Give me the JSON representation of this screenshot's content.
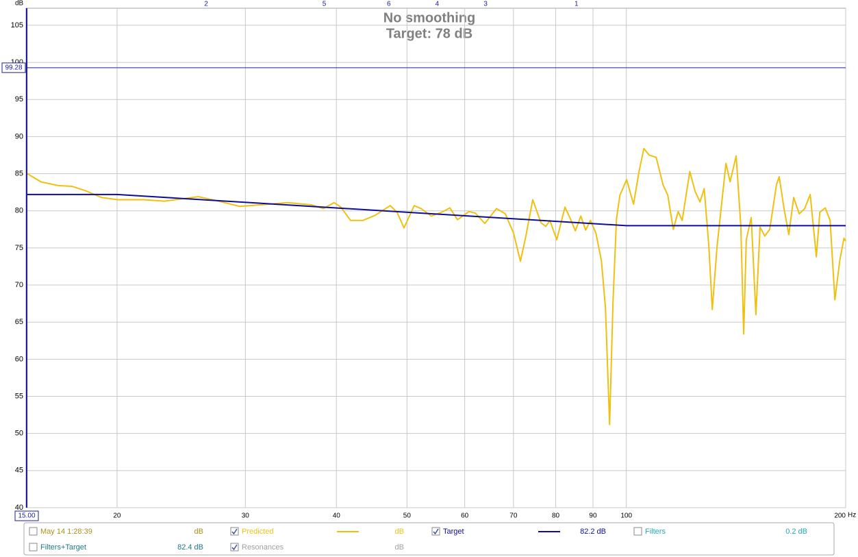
{
  "chart_data": {
    "type": "line",
    "title": "No smoothing",
    "subtitle": "Target: 78 dB",
    "y_label": "dB",
    "x_label": "Hz",
    "x_scale": "log",
    "grid": true,
    "xlim": [
      15,
      200
    ],
    "ylim": [
      40,
      107.3
    ],
    "xticks": [
      20,
      30,
      40,
      50,
      60,
      70,
      80,
      90,
      100,
      200
    ],
    "yticks": [
      40,
      45,
      50,
      55,
      60,
      65,
      70,
      75,
      80,
      85,
      90,
      95,
      100,
      105
    ],
    "cursor_x": {
      "value": 15,
      "label": "15.00"
    },
    "cursor_y": {
      "value": 99.28,
      "label": "99.28"
    },
    "top_markers": [
      {
        "x": 26.5,
        "label": "2"
      },
      {
        "x": 38.5,
        "label": "5"
      },
      {
        "x": 47.2,
        "label": "6"
      },
      {
        "x": 55.0,
        "label": "4"
      },
      {
        "x": 64.1,
        "label": "3"
      },
      {
        "x": 85.4,
        "label": "1"
      }
    ],
    "series": [
      {
        "name": "Predicted",
        "color": "#f0c010",
        "checked": true,
        "readout": "dB",
        "x": [
          15,
          15.73,
          16.61,
          17.34,
          18.11,
          19.03,
          20.05,
          21.76,
          23.22,
          24.51,
          25.86,
          27.31,
          29.46,
          31.43,
          34.28,
          37.0,
          38.36,
          39.72,
          40.58,
          41.83,
          43.49,
          45.22,
          47.42,
          48.46,
          49.52,
          51.15,
          52.27,
          54.0,
          55.79,
          57.26,
          58.64,
          60.83,
          62.03,
          63.94,
          66.33,
          68.22,
          70.02,
          71.55,
          72.8,
          74.39,
          76.35,
          77.52,
          78.54,
          80.26,
          82.37,
          83.81,
          85.12,
          86.61,
          87.93,
          89.27,
          90.83,
          92.42,
          93.62,
          94.85,
          95.88,
          96.93,
          97.98,
          100.1,
          102.3,
          104.1,
          105.7,
          107.5,
          109.9,
          112.3,
          114.0,
          116.0,
          117.8,
          119.3,
          122.2,
          124.3,
          126.2,
          127.9,
          129.8,
          131.2,
          133.2,
          137.0,
          138.8,
          141.5,
          143.6,
          144.9,
          146.1,
          148.4,
          150.6,
          152.6,
          154.9,
          157.3,
          159.4,
          160.7,
          162.1,
          164.6,
          167.1,
          169.7,
          172.7,
          175.7,
          178.8,
          182.3,
          184.3,
          187.5,
          190.4,
          193.3,
          196.3,
          198.9,
          200
        ],
        "values": [
          85.1,
          83.9,
          83.4,
          83.3,
          82.7,
          81.8,
          81.5,
          81.5,
          81.3,
          81.6,
          81.9,
          81.4,
          80.6,
          80.8,
          81.1,
          80.8,
          80.3,
          81.1,
          80.5,
          78.7,
          78.7,
          79.4,
          80.7,
          79.8,
          77.7,
          80.7,
          80.3,
          79.3,
          79.8,
          80.4,
          78.8,
          79.9,
          79.7,
          78.3,
          80.3,
          79.6,
          77.0,
          73.2,
          76.6,
          81.5,
          78.4,
          77.9,
          78.7,
          76.1,
          80.5,
          78.9,
          77.3,
          79.3,
          77.4,
          78.7,
          77.0,
          73.3,
          66.9,
          51.2,
          67.8,
          78.9,
          82.1,
          84.2,
          80.9,
          85.3,
          88.4,
          87.5,
          87.2,
          83.5,
          82.1,
          77.5,
          79.9,
          78.7,
          85.3,
          82.6,
          81.2,
          83.0,
          75.2,
          66.7,
          75.2,
          86.4,
          83.9,
          87.4,
          77.9,
          63.4,
          76.1,
          79.1,
          66.0,
          77.8,
          76.6,
          77.5,
          81.2,
          83.5,
          84.6,
          80.3,
          76.8,
          81.8,
          79.6,
          80.3,
          82.2,
          73.8,
          79.8,
          80.4,
          78.7,
          68.0,
          73.3,
          76.3,
          75.9
        ]
      },
      {
        "name": "Target",
        "color": "#0c0c96",
        "checked": true,
        "readout": "82.2 dB",
        "x": [
          15,
          20,
          100,
          200
        ],
        "values": [
          82.2,
          82.2,
          78.0,
          78.0
        ]
      }
    ],
    "legend_extra": [
      {
        "name": "May 14 1:28:39",
        "readout": "dB",
        "checked": false,
        "color": "#a8901c"
      },
      {
        "name": "Filters",
        "readout": "0.2 dB",
        "checked": false,
        "color": "#20a8b8"
      },
      {
        "name": "Filters+Target",
        "readout": "82.4 dB",
        "checked": false,
        "color": "#207888"
      },
      {
        "name": "Resonances",
        "readout": "dB",
        "checked": true,
        "color": "#a0a0a0"
      }
    ]
  }
}
